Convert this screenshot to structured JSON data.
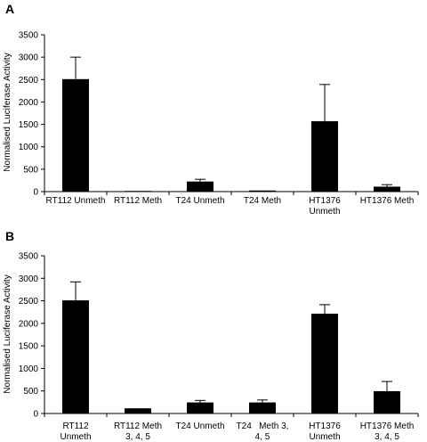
{
  "chart_data": [
    {
      "panel": "A",
      "type": "bar",
      "ylabel": "Normalised Luciferase Activity",
      "xlabel": "",
      "ylim": [
        0,
        3500
      ],
      "yticks": [
        0,
        500,
        1000,
        1500,
        2000,
        2500,
        3000,
        3500
      ],
      "categories": [
        [
          "RT112 Unmeth"
        ],
        [
          "RT112 Meth"
        ],
        [
          "T24 Unmeth"
        ],
        [
          "T24 Meth"
        ],
        [
          "HT1376",
          "Unmeth"
        ],
        [
          "HT1376 Meth"
        ]
      ],
      "values": [
        2510,
        15,
        225,
        25,
        1570,
        110
      ],
      "errors": [
        490,
        0,
        50,
        0,
        820,
        45
      ],
      "bar_color": "#000000",
      "grid": false,
      "legend": "none"
    },
    {
      "panel": "B",
      "type": "bar",
      "ylabel": "Normalised Luciferase Activity",
      "xlabel": "",
      "ylim": [
        0,
        3500
      ],
      "yticks": [
        0,
        500,
        1000,
        1500,
        2000,
        2500,
        3000,
        3500
      ],
      "categories": [
        [
          "RT112",
          "Unmeth"
        ],
        [
          "RT112 Meth",
          "3, 4, 5"
        ],
        [
          "T24 Unmeth"
        ],
        [
          "T24   Meth 3,",
          "4, 5"
        ],
        [
          "HT1376",
          "Unmeth"
        ],
        [
          "HT1376 Meth",
          "3, 4, 5"
        ]
      ],
      "values": [
        2510,
        115,
        245,
        245,
        2215,
        495
      ],
      "errors": [
        410,
        0,
        45,
        55,
        200,
        215
      ],
      "bar_color": "#000000",
      "grid": false,
      "legend": "none"
    }
  ]
}
